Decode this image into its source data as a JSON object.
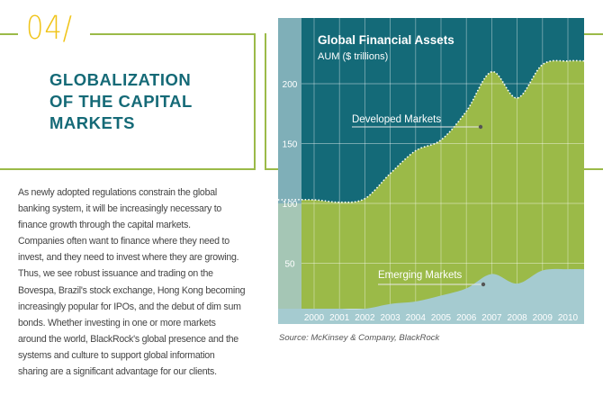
{
  "section": {
    "number": "04/",
    "title_lines": [
      "GLOBALIZATION",
      "OF THE CAPITAL",
      "MARKETS"
    ]
  },
  "body_lines": [
    "As newly adopted regulations constrain the global",
    "banking system, it will be increasingly necessary to",
    "finance growth through the capital markets.",
    "Companies often want to finance where they need to",
    "invest, and they need to invest where they are growing.",
    "Thus, we see robust issuance and trading on the",
    "Bovespa, Brazil's stock exchange, Hong Kong becoming",
    "increasingly popular for IPOs, and the debut of dim sum",
    "bonds. Whether investing in one or more markets",
    "around the world, BlackRock's global presence and the",
    "systems and culture to support global information",
    "sharing are a significant advantage for our clients."
  ],
  "chart_data": {
    "type": "area",
    "title": "Global Financial Assets",
    "subtitle": "AUM ($ trillions)",
    "categories": [
      "2000",
      "2001",
      "2002",
      "2003",
      "2004",
      "2005",
      "2006",
      "2007",
      "2008",
      "2009",
      "2010"
    ],
    "x": [
      2000,
      2001,
      2002,
      2003,
      2004,
      2005,
      2006,
      2007,
      2008,
      2009,
      2010
    ],
    "series": [
      {
        "name": "Developed Markets",
        "values": [
          103,
          101,
          104,
          125,
          144,
          153,
          177,
          210,
          188,
          216,
          219
        ]
      },
      {
        "name": "Emerging Markets",
        "values": [
          12,
          12,
          12,
          16,
          18,
          23,
          29,
          41,
          33,
          44,
          45
        ]
      }
    ],
    "yticks": [
      50,
      100,
      150,
      200
    ],
    "ylim": [
      0,
      250
    ],
    "grid": true,
    "source": "Source: McKinsey & Company, BlackRock",
    "colors": {
      "background": "#146a78",
      "developed": "#9bba48",
      "emerging": "#a5cbd0",
      "axis_strip": "#7fafb8"
    }
  }
}
